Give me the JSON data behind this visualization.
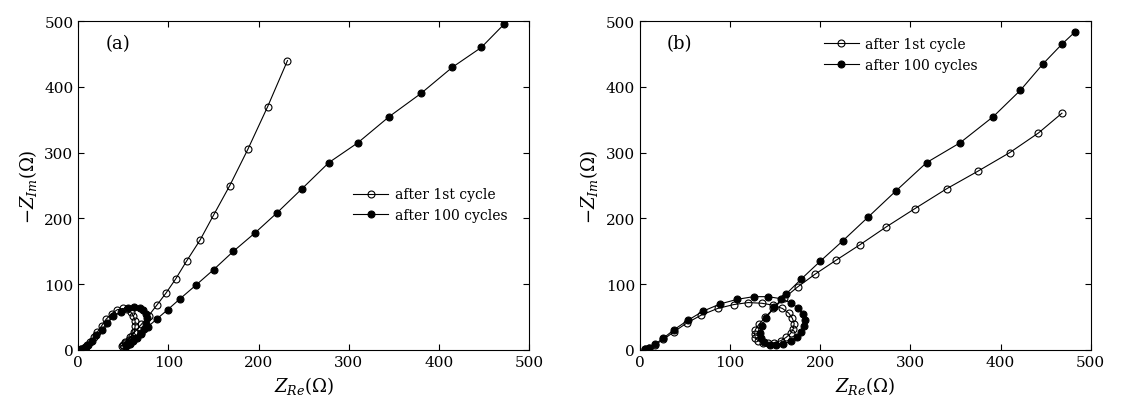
{
  "panel_a": {
    "label": "(a)",
    "xlim": [
      0,
      500
    ],
    "ylim": [
      0,
      500
    ],
    "xticks": [
      0,
      100,
      200,
      300,
      400,
      500
    ],
    "yticks": [
      0,
      100,
      200,
      300,
      400,
      500
    ],
    "legend_loc": "lower right",
    "series1": {
      "label": "after 1st cycle",
      "fillstyle": "none",
      "x": [
        3,
        5,
        7,
        10,
        13,
        17,
        21,
        26,
        31,
        37,
        43,
        49,
        54,
        58,
        61,
        63,
        63,
        62,
        59,
        56,
        52,
        49,
        48,
        49,
        52,
        57,
        63,
        70,
        78,
        87,
        97,
        108,
        120,
        135,
        150,
        168,
        188,
        210,
        232
      ],
      "y": [
        1,
        2,
        4,
        7,
        12,
        19,
        27,
        37,
        47,
        55,
        61,
        63,
        62,
        58,
        52,
        44,
        36,
        28,
        21,
        15,
        10,
        7,
        6,
        7,
        12,
        19,
        28,
        39,
        52,
        68,
        86,
        108,
        135,
        167,
        205,
        250,
        305,
        370,
        440
      ]
    },
    "series2": {
      "label": "after 100 cycles",
      "fillstyle": "full",
      "x": [
        3,
        5,
        8,
        11,
        15,
        20,
        26,
        32,
        39,
        47,
        55,
        62,
        68,
        72,
        75,
        76,
        75,
        73,
        69,
        65,
        61,
        57,
        54,
        53,
        54,
        57,
        62,
        69,
        77,
        87,
        99,
        113,
        130,
        150,
        172,
        196,
        220,
        248,
        278,
        310,
        345,
        380,
        415,
        447,
        472
      ],
      "y": [
        1,
        2,
        4,
        8,
        14,
        22,
        31,
        41,
        51,
        58,
        63,
        65,
        63,
        60,
        55,
        48,
        40,
        32,
        24,
        18,
        13,
        9,
        7,
        6,
        7,
        11,
        17,
        25,
        35,
        47,
        61,
        78,
        98,
        122,
        150,
        178,
        208,
        245,
        285,
        315,
        355,
        390,
        430,
        460,
        495
      ]
    }
  },
  "panel_b": {
    "label": "(b)",
    "xlim": [
      0,
      500
    ],
    "ylim": [
      0,
      500
    ],
    "xticks": [
      0,
      100,
      200,
      300,
      400,
      500
    ],
    "yticks": [
      0,
      100,
      200,
      300,
      400,
      500
    ],
    "legend_loc": "upper right",
    "series1": {
      "label": "after 1st cycle",
      "fillstyle": "none",
      "x": [
        5,
        10,
        17,
        26,
        38,
        52,
        68,
        86,
        104,
        120,
        135,
        148,
        158,
        165,
        169,
        171,
        170,
        167,
        162,
        156,
        149,
        142,
        136,
        131,
        128,
        127,
        128,
        132,
        139,
        148,
        160,
        175,
        194,
        217,
        244,
        273,
        305,
        340,
        375,
        410,
        442,
        468
      ],
      "y": [
        1,
        3,
        8,
        16,
        28,
        41,
        53,
        63,
        69,
        72,
        71,
        68,
        63,
        56,
        48,
        40,
        32,
        25,
        19,
        14,
        11,
        10,
        11,
        14,
        18,
        24,
        31,
        39,
        50,
        63,
        79,
        96,
        115,
        136,
        160,
        187,
        215,
        245,
        272,
        300,
        330,
        360
      ]
    },
    "series2": {
      "label": "after 100 cycles",
      "fillstyle": "full",
      "x": [
        5,
        10,
        17,
        26,
        38,
        53,
        70,
        89,
        108,
        126,
        142,
        156,
        167,
        175,
        181,
        183,
        182,
        179,
        174,
        167,
        159,
        151,
        144,
        138,
        134,
        133,
        135,
        140,
        149,
        162,
        179,
        200,
        225,
        253,
        284,
        318,
        355,
        392,
        422,
        447,
        468,
        482
      ],
      "y": [
        1,
        3,
        9,
        18,
        31,
        45,
        59,
        70,
        77,
        81,
        81,
        78,
        72,
        64,
        55,
        46,
        36,
        27,
        19,
        13,
        9,
        7,
        8,
        12,
        18,
        26,
        36,
        49,
        65,
        85,
        108,
        135,
        166,
        202,
        242,
        285,
        315,
        355,
        395,
        435,
        465,
        483
      ]
    }
  },
  "figure": {
    "figsize": [
      11.22,
      4.14
    ],
    "dpi": 100,
    "bg_color": "white",
    "tick_fontsize": 11,
    "label_fontsize": 13,
    "legend_fontsize": 10,
    "markersize": 5,
    "linewidth": 0.8
  }
}
